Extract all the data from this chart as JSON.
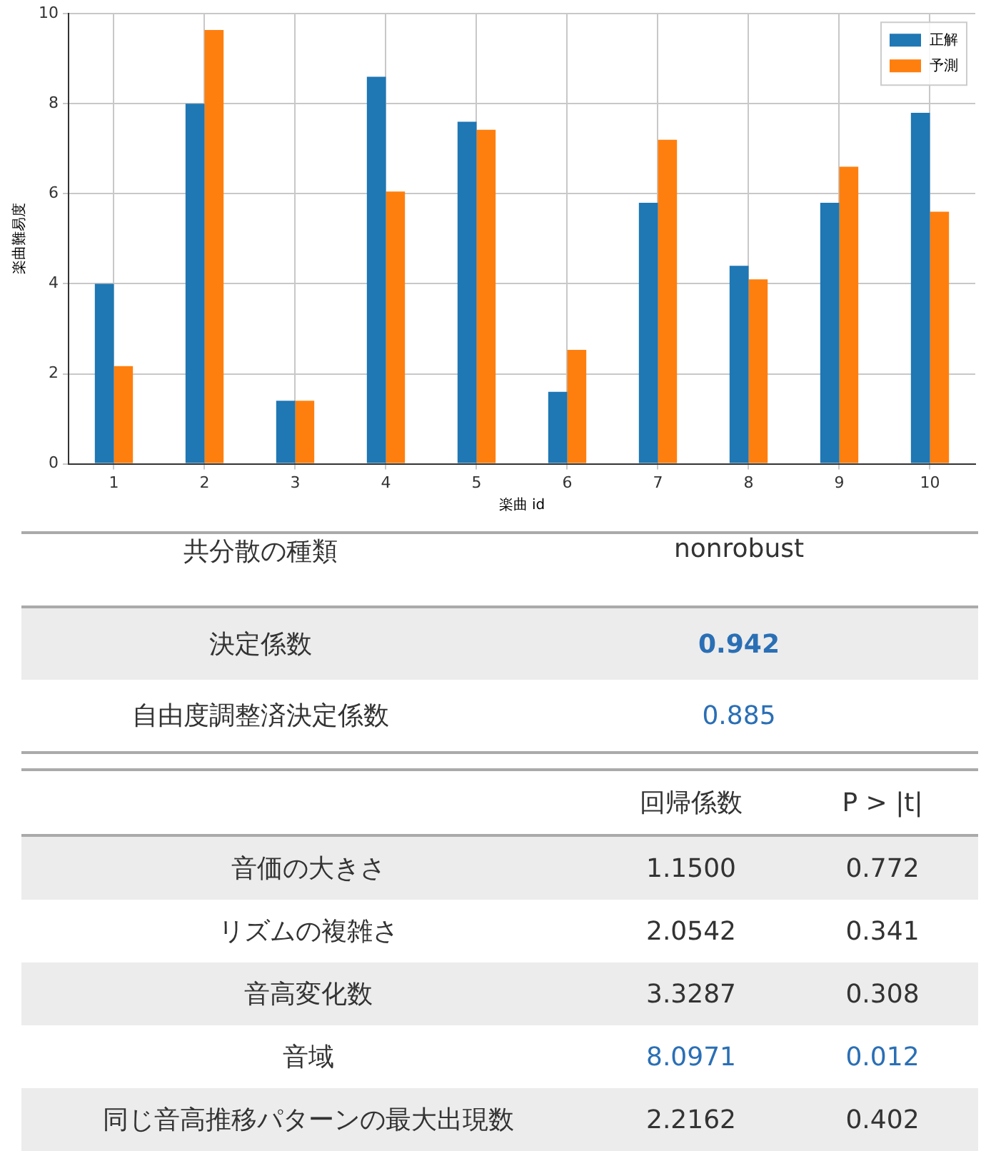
{
  "chart_data": [
    {
      "type": "bar",
      "xlabel": "楽曲 id",
      "ylabel": "楽曲難易度",
      "categories": [
        "1",
        "2",
        "3",
        "4",
        "5",
        "6",
        "7",
        "8",
        "9",
        "10"
      ],
      "series": [
        {
          "name": "正解",
          "color": "#1f77b4",
          "values": [
            4.0,
            8.0,
            1.4,
            8.6,
            7.6,
            1.6,
            5.8,
            4.4,
            5.8,
            7.8
          ]
        },
        {
          "name": "予測",
          "color": "#ff7f0e",
          "values": [
            2.17,
            9.64,
            1.4,
            6.05,
            7.42,
            2.53,
            7.2,
            4.1,
            6.6,
            5.6
          ]
        }
      ],
      "ylim": [
        0,
        10
      ],
      "yticks": [
        0,
        2,
        4,
        6,
        8,
        10
      ],
      "grid": true,
      "legend": "top right"
    },
    {
      "type": "other",
      "annotations": [
        "共分散の種類",
        "nonrobust",
        "決定係数",
        "0.942",
        "自由度調整済決定係数",
        "0.885"
      ]
    },
    {
      "type": "other",
      "annotations": [
        "回帰係数",
        "P > |t|",
        "音価の大きさ",
        "1.1500",
        "0.772",
        "リズムの複雑さ",
        "2.0542",
        "0.341",
        "音高変化数",
        "3.3287",
        "0.308",
        "音域",
        "8.0971",
        "0.012",
        "同じ音高推移パターンの最大出現数",
        "2.2162",
        "0.402"
      ]
    }
  ]
}
